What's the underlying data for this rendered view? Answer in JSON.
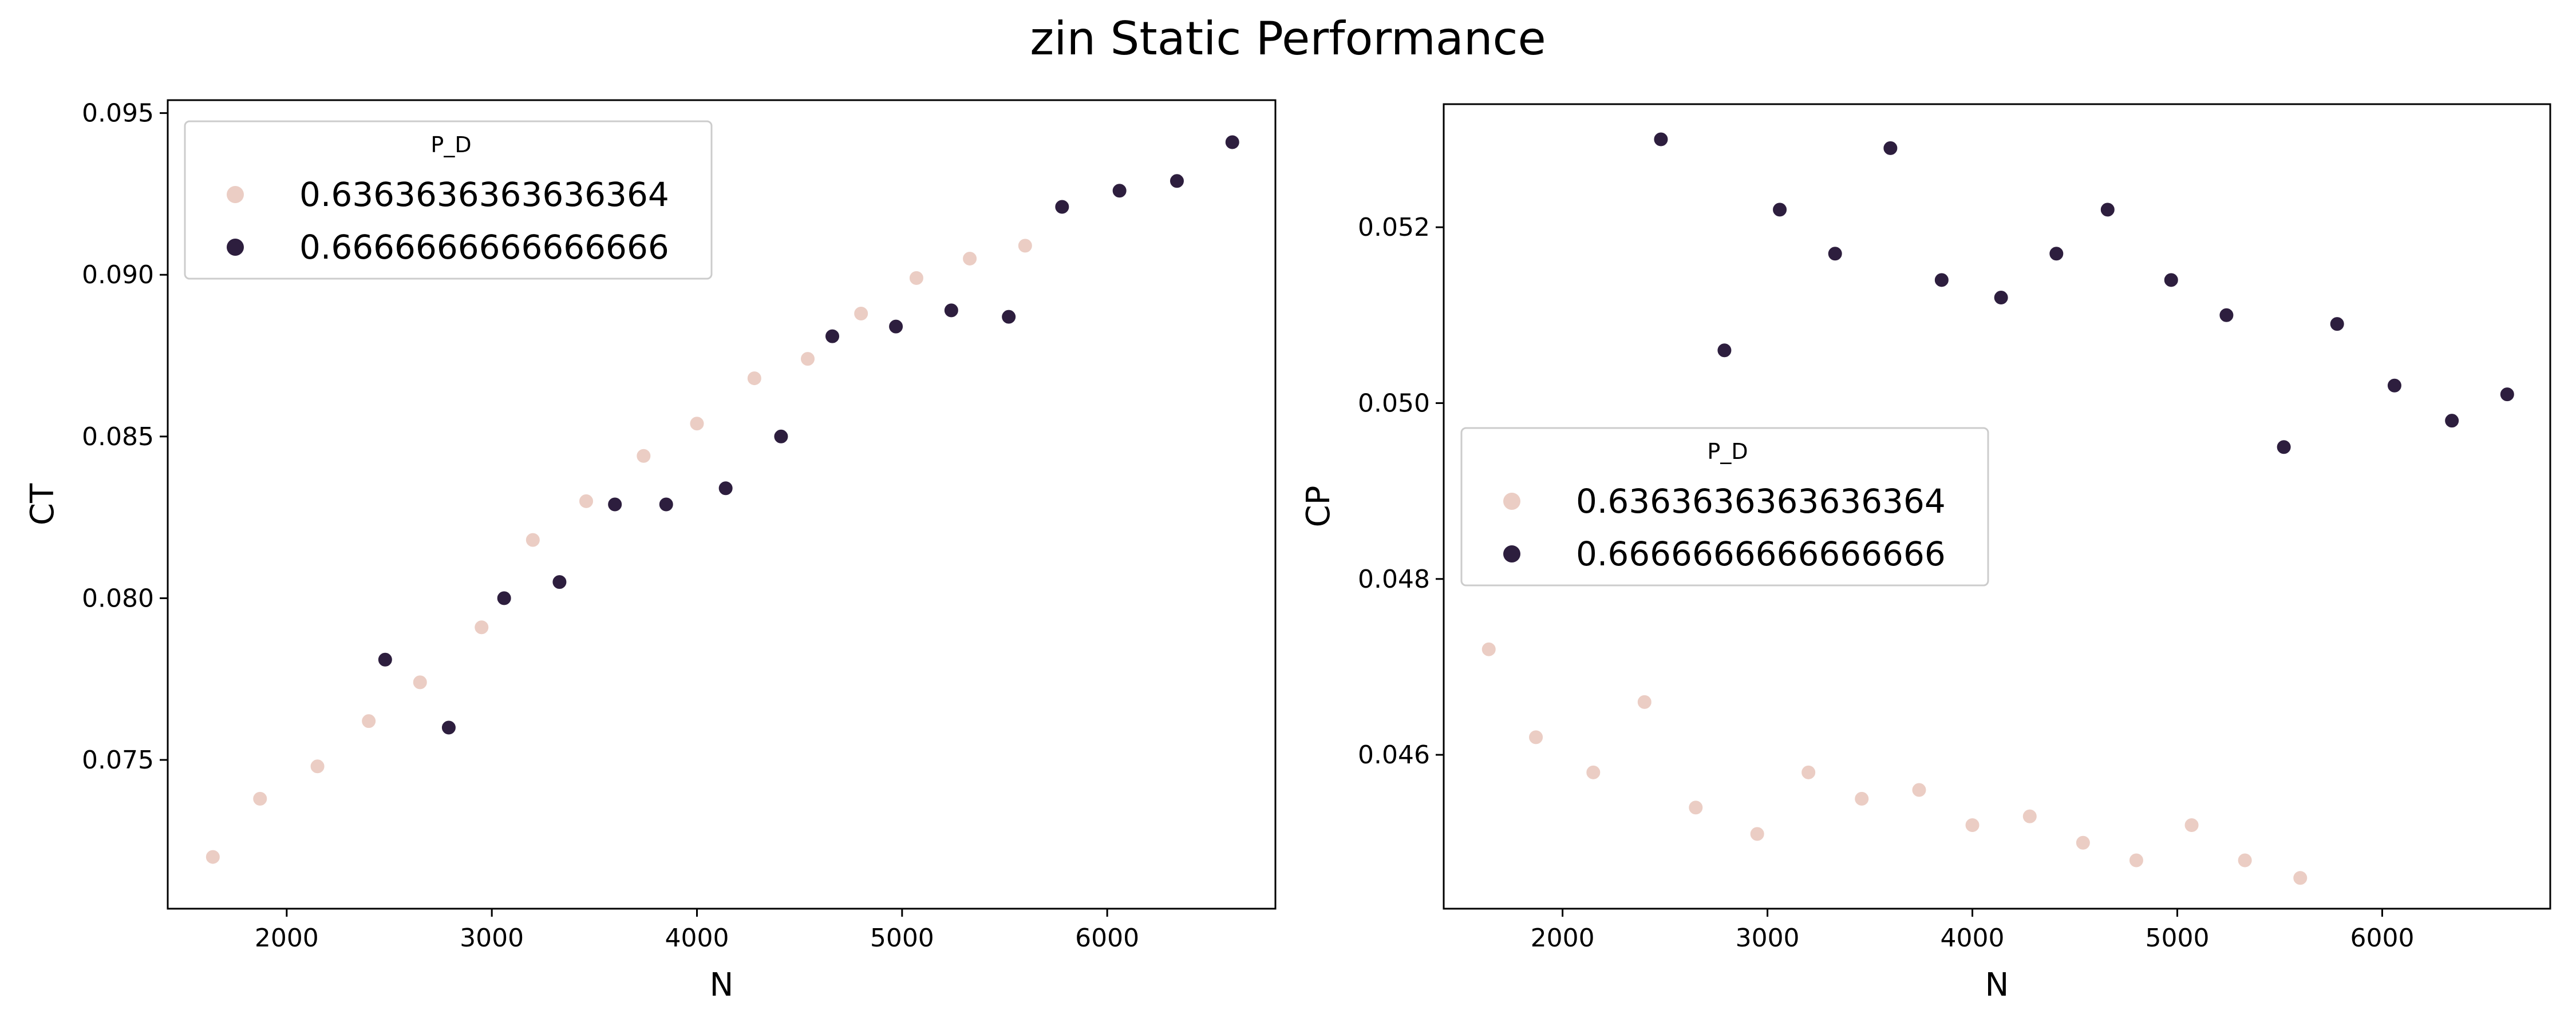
{
  "figure": {
    "title": "zin Static Performance"
  },
  "colors": {
    "light": "#EBCDC4",
    "dark": "#2D1E3E"
  },
  "chart_data": [
    {
      "type": "scatter",
      "title": "",
      "xlabel": "N",
      "ylabel": "CT",
      "xlim": [
        1420,
        6820
      ],
      "ylim": [
        0.0704,
        0.0954
      ],
      "xticks": [
        2000,
        3000,
        4000,
        5000,
        6000
      ],
      "xtick_labels": [
        "2000",
        "3000",
        "4000",
        "5000",
        "6000"
      ],
      "yticks": [
        0.075,
        0.08,
        0.085,
        0.09,
        0.095
      ],
      "ytick_labels": [
        "0.075",
        "0.080",
        "0.085",
        "0.090",
        "0.095"
      ],
      "grid": false,
      "legend": {
        "title": "P_D",
        "position": "upper-left"
      },
      "series": [
        {
          "name": "0.6363636363636364",
          "color": "light",
          "x": [
            1640,
            1870,
            2150,
            2400,
            2650,
            2950,
            3200,
            3460,
            3740,
            4000,
            4280,
            4540,
            4800,
            5070,
            5330,
            5600
          ],
          "y": [
            0.072,
            0.0738,
            0.0748,
            0.0762,
            0.0774,
            0.0791,
            0.0818,
            0.083,
            0.0844,
            0.0854,
            0.0868,
            0.0874,
            0.0888,
            0.0899,
            0.0905,
            0.0909
          ]
        },
        {
          "name": "0.6666666666666666",
          "color": "dark",
          "x": [
            2480,
            2790,
            3060,
            3330,
            3600,
            3850,
            4140,
            4410,
            4660,
            4970,
            5240,
            5520,
            5780,
            6060,
            6340,
            6610
          ],
          "y": [
            0.0781,
            0.076,
            0.08,
            0.0805,
            0.0829,
            0.0829,
            0.0834,
            0.085,
            0.0881,
            0.0884,
            0.0889,
            0.0887,
            0.0921,
            0.0926,
            0.0929,
            0.0941
          ]
        }
      ]
    },
    {
      "type": "scatter",
      "title": "",
      "xlabel": "N",
      "ylabel": "CP",
      "xlim": [
        1420,
        6820
      ],
      "ylim": [
        0.04425,
        0.0534
      ],
      "xticks": [
        2000,
        3000,
        4000,
        5000,
        6000
      ],
      "xtick_labels": [
        "2000",
        "3000",
        "4000",
        "5000",
        "6000"
      ],
      "yticks": [
        0.046,
        0.048,
        0.05,
        0.052
      ],
      "ytick_labels": [
        "0.046",
        "0.048",
        "0.050",
        "0.052"
      ],
      "grid": false,
      "legend": {
        "title": "P_D",
        "position": "center-left"
      },
      "series": [
        {
          "name": "0.6363636363636364",
          "color": "light",
          "x": [
            1640,
            1870,
            2150,
            2400,
            2650,
            2950,
            3200,
            3460,
            3740,
            4000,
            4280,
            4540,
            4800,
            5070,
            5330,
            5600
          ],
          "y": [
            0.0472,
            0.0462,
            0.0458,
            0.0466,
            0.0454,
            0.0451,
            0.0458,
            0.0455,
            0.0456,
            0.0452,
            0.0453,
            0.045,
            0.0448,
            0.0452,
            0.0448,
            0.0446
          ]
        },
        {
          "name": "0.6666666666666666",
          "color": "dark",
          "x": [
            2480,
            2790,
            3060,
            3330,
            3600,
            3850,
            4140,
            4410,
            4660,
            4970,
            5240,
            5520,
            5780,
            6060,
            6340,
            6610
          ],
          "y": [
            0.053,
            0.0506,
            0.0522,
            0.0517,
            0.0529,
            0.0514,
            0.0512,
            0.0517,
            0.0522,
            0.0514,
            0.051,
            0.0495,
            0.0509,
            0.0502,
            0.0498,
            0.0501
          ]
        }
      ]
    }
  ]
}
